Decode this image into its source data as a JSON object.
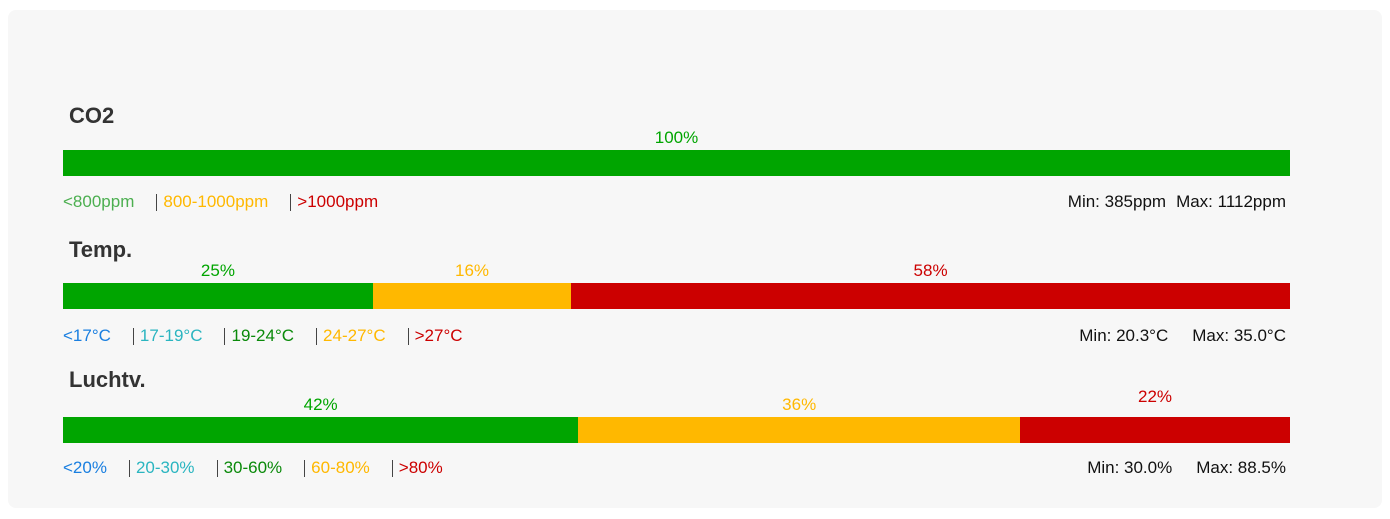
{
  "sections": [
    {
      "title": "CO2",
      "values": [
        100
      ],
      "value_labels": [
        "100%"
      ],
      "colors": [
        "#00a500"
      ],
      "legend": [
        {
          "text": "<800ppm",
          "color": "#4caf50"
        },
        {
          "text": "800-1000ppm",
          "color": "#ffb800"
        },
        {
          "text": ">1000ppm",
          "color": "#cc0000"
        }
      ],
      "min": "Min: 385ppm",
      "max": "Max: 1112ppm"
    },
    {
      "title": "Temp.",
      "values": [
        25,
        16,
        58
      ],
      "value_labels": [
        "25%",
        "16%",
        "58%"
      ],
      "colors": [
        "#00a500",
        "#ffb800",
        "#cc0000"
      ],
      "legend": [
        {
          "text": "<17°C",
          "color": "#1a7fe0"
        },
        {
          "text": "17-19°C",
          "color": "#2ab5c0"
        },
        {
          "text": "19-24°C",
          "color": "#0a8a0a"
        },
        {
          "text": "24-27°C",
          "color": "#ffb800"
        },
        {
          "text": ">27°C",
          "color": "#cc0000"
        }
      ],
      "min": "Min: 20.3°C",
      "max": "Max: 35.0°C"
    },
    {
      "title": "Luchtv.",
      "values": [
        42,
        36,
        22
      ],
      "value_labels": [
        "42%",
        "36%",
        "22%"
      ],
      "colors": [
        "#00a500",
        "#ffb800",
        "#cc0000"
      ],
      "legend": [
        {
          "text": "<20%",
          "color": "#1a7fe0"
        },
        {
          "text": "20-30%",
          "color": "#2ab5c0"
        },
        {
          "text": "30-60%",
          "color": "#0a8a0a"
        },
        {
          "text": "60-80%",
          "color": "#ffb800"
        },
        {
          "text": ">80%",
          "color": "#cc0000"
        }
      ],
      "min": "Min: 30.0%",
      "max": "Max: 88.5%"
    }
  ]
}
